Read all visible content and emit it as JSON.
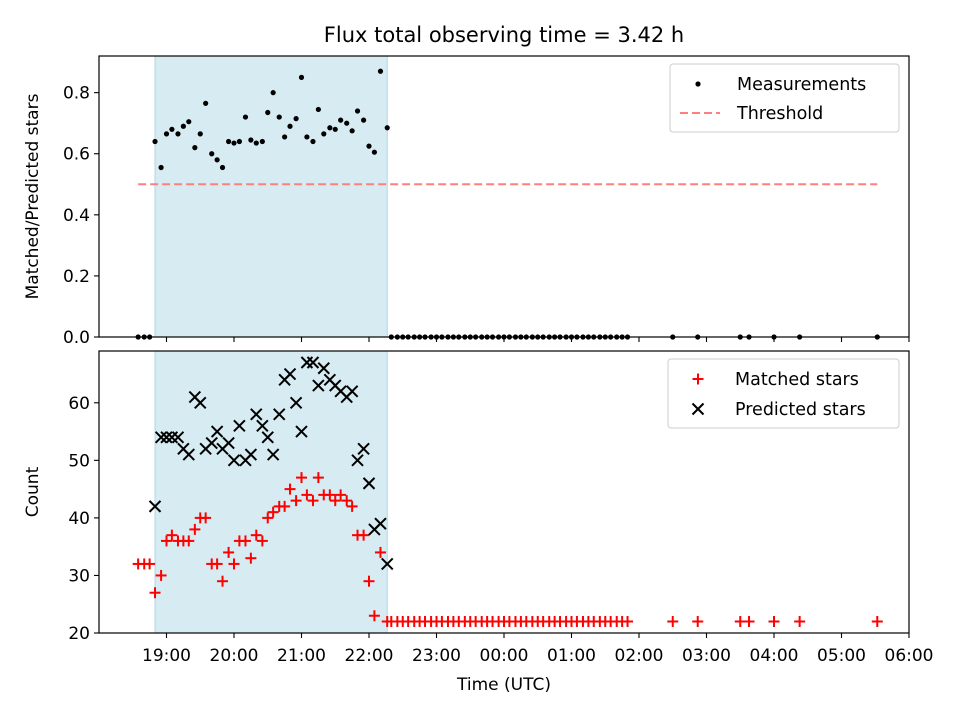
{
  "chart_data": [
    {
      "type": "scatter",
      "title": "Flux total observing time = 3.42 h",
      "ylabel": "Matched/Predicted stars",
      "xlabel": "",
      "x_unit": "hours_utc_continuous",
      "xlim": [
        18.0,
        30.0
      ],
      "ylim": [
        0.0,
        0.92
      ],
      "yticks": [
        0.0,
        0.2,
        0.4,
        0.6,
        0.8
      ],
      "ytick_labels": [
        "0.0",
        "0.2",
        "0.4",
        "0.6",
        "0.8"
      ],
      "shaded_span": [
        18.83,
        22.27
      ],
      "colors": {
        "shade": "#add8e6",
        "measurements": "#000000",
        "threshold": "#ff7f7f"
      },
      "legend": {
        "placement": "upper right",
        "items": [
          {
            "label": "Measurements"
          },
          {
            "label": "Threshold"
          }
        ]
      },
      "series": [
        {
          "name": "Measurements",
          "x": [
            18.58,
            18.67,
            18.75,
            18.83,
            18.92,
            19.0,
            19.08,
            19.17,
            19.25,
            19.33,
            19.42,
            19.5,
            19.58,
            19.67,
            19.75,
            19.83,
            19.92,
            20.0,
            20.08,
            20.17,
            20.25,
            20.33,
            20.42,
            20.5,
            20.58,
            20.67,
            20.75,
            20.83,
            20.92,
            21.0,
            21.08,
            21.17,
            21.25,
            21.33,
            21.42,
            21.5,
            21.58,
            21.67,
            21.75,
            21.83,
            21.92,
            22.0,
            22.08,
            22.17,
            22.27,
            22.33,
            22.42,
            22.5,
            22.58,
            22.67,
            22.75,
            22.83,
            22.92,
            23.0,
            23.08,
            23.17,
            23.25,
            23.33,
            23.42,
            23.5,
            23.58,
            23.67,
            23.75,
            23.83,
            23.92,
            24.0,
            24.08,
            24.17,
            24.25,
            24.33,
            24.42,
            24.5,
            24.58,
            24.67,
            24.75,
            24.83,
            24.92,
            25.0,
            25.08,
            25.17,
            25.25,
            25.33,
            25.42,
            25.5,
            25.58,
            25.67,
            25.75,
            25.83,
            26.5,
            26.87,
            27.5,
            27.63,
            28.0,
            28.38,
            29.53
          ],
          "y": [
            0.0,
            0.0,
            0.0,
            0.64,
            0.555,
            0.665,
            0.68,
            0.665,
            0.69,
            0.705,
            0.62,
            0.665,
            0.765,
            0.6,
            0.58,
            0.555,
            0.64,
            0.635,
            0.64,
            0.72,
            0.645,
            0.635,
            0.64,
            0.735,
            0.8,
            0.72,
            0.655,
            0.69,
            0.715,
            0.85,
            0.655,
            0.64,
            0.745,
            0.665,
            0.685,
            0.68,
            0.71,
            0.7,
            0.675,
            0.74,
            0.71,
            0.625,
            0.605,
            0.87,
            0.685,
            0.0,
            0.0,
            0.0,
            0.0,
            0.0,
            0.0,
            0.0,
            0.0,
            0.0,
            0.0,
            0.0,
            0.0,
            0.0,
            0.0,
            0.0,
            0.0,
            0.0,
            0.0,
            0.0,
            0.0,
            0.0,
            0.0,
            0.0,
            0.0,
            0.0,
            0.0,
            0.0,
            0.0,
            0.0,
            0.0,
            0.0,
            0.0,
            0.0,
            0.0,
            0.0,
            0.0,
            0.0,
            0.0,
            0.0,
            0.0,
            0.0,
            0.0,
            0.0,
            0.0,
            0.0,
            0.0,
            0.0,
            0.0,
            0.0,
            0.0
          ],
          "marker": "dot"
        },
        {
          "name": "Threshold",
          "x": [
            18.58,
            29.53
          ],
          "y": [
            0.5,
            0.5
          ],
          "style": "dashed"
        }
      ]
    },
    {
      "type": "scatter",
      "title": "",
      "ylabel": "Count",
      "xlabel": "Time (UTC)",
      "x_unit": "hours_utc_continuous",
      "xlim": [
        18.0,
        30.0
      ],
      "ylim": [
        20.0,
        69.0
      ],
      "yticks": [
        20,
        30,
        40,
        50,
        60
      ],
      "ytick_labels": [
        "20",
        "30",
        "40",
        "50",
        "60"
      ],
      "xticks": [
        19,
        20,
        21,
        22,
        23,
        24,
        25,
        26,
        27,
        28,
        29,
        30
      ],
      "xtick_labels": [
        "19:00",
        "20:00",
        "21:00",
        "22:00",
        "23:00",
        "00:00",
        "01:00",
        "02:00",
        "03:00",
        "04:00",
        "05:00",
        "06:00"
      ],
      "shaded_span": [
        18.83,
        22.27
      ],
      "colors": {
        "shade": "#add8e6",
        "matched": "#ff0000",
        "predicted": "#000000"
      },
      "legend": {
        "placement": "upper right",
        "items": [
          {
            "label": "Matched stars"
          },
          {
            "label": "Predicted stars"
          }
        ]
      },
      "series": [
        {
          "name": "Matched stars",
          "x": [
            18.58,
            18.67,
            18.75,
            18.83,
            18.92,
            19.0,
            19.08,
            19.17,
            19.25,
            19.33,
            19.42,
            19.5,
            19.58,
            19.67,
            19.75,
            19.83,
            19.92,
            20.0,
            20.08,
            20.17,
            20.25,
            20.33,
            20.42,
            20.5,
            20.58,
            20.67,
            20.75,
            20.83,
            20.92,
            21.0,
            21.08,
            21.17,
            21.25,
            21.33,
            21.42,
            21.5,
            21.58,
            21.67,
            21.75,
            21.83,
            21.92,
            22.0,
            22.08,
            22.17,
            22.27,
            22.33,
            22.42,
            22.5,
            22.58,
            22.67,
            22.75,
            22.83,
            22.92,
            23.0,
            23.08,
            23.17,
            23.25,
            23.33,
            23.42,
            23.5,
            23.58,
            23.67,
            23.75,
            23.83,
            23.92,
            24.0,
            24.08,
            24.17,
            24.25,
            24.33,
            24.42,
            24.5,
            24.58,
            24.67,
            24.75,
            24.83,
            24.92,
            25.0,
            25.08,
            25.17,
            25.25,
            25.33,
            25.42,
            25.5,
            25.58,
            25.67,
            25.75,
            25.83,
            26.5,
            26.87,
            27.5,
            27.63,
            28.0,
            28.38,
            29.53
          ],
          "y": [
            32,
            32,
            32,
            27,
            30,
            36,
            37,
            36,
            36,
            36,
            38,
            40,
            40,
            32,
            32,
            29,
            34,
            32,
            36,
            36,
            33,
            37,
            36,
            40,
            41,
            42,
            42,
            45,
            43,
            47,
            44,
            43,
            47,
            44,
            44,
            43,
            44,
            43,
            42,
            37,
            37,
            29,
            23,
            34,
            22,
            22,
            22,
            22,
            22,
            22,
            22,
            22,
            22,
            22,
            22,
            22,
            22,
            22,
            22,
            22,
            22,
            22,
            22,
            22,
            22,
            22,
            22,
            22,
            22,
            22,
            22,
            22,
            22,
            22,
            22,
            22,
            22,
            22,
            22,
            22,
            22,
            22,
            22,
            22,
            22,
            22,
            22,
            22,
            22,
            22,
            22,
            22,
            22,
            22,
            22
          ],
          "marker": "plus"
        },
        {
          "name": "Predicted stars",
          "x": [
            18.83,
            18.92,
            19.0,
            19.08,
            19.17,
            19.25,
            19.33,
            19.42,
            19.5,
            19.58,
            19.67,
            19.75,
            19.83,
            19.92,
            20.0,
            20.08,
            20.17,
            20.25,
            20.33,
            20.42,
            20.5,
            20.58,
            20.67,
            20.75,
            20.83,
            20.92,
            21.0,
            21.08,
            21.17,
            21.25,
            21.33,
            21.42,
            21.5,
            21.58,
            21.67,
            21.75,
            21.83,
            21.92,
            22.0,
            22.08,
            22.17,
            22.27
          ],
          "y": [
            42,
            54,
            54,
            54,
            54,
            52,
            51,
            61,
            60,
            52,
            53,
            55,
            52,
            53,
            50,
            56,
            50,
            51,
            58,
            56,
            54,
            51,
            58,
            64,
            65,
            60,
            55,
            67,
            67,
            63,
            66,
            64,
            63,
            62,
            61,
            62,
            50,
            52,
            46,
            38,
            39,
            32
          ],
          "marker": "x"
        }
      ]
    }
  ]
}
